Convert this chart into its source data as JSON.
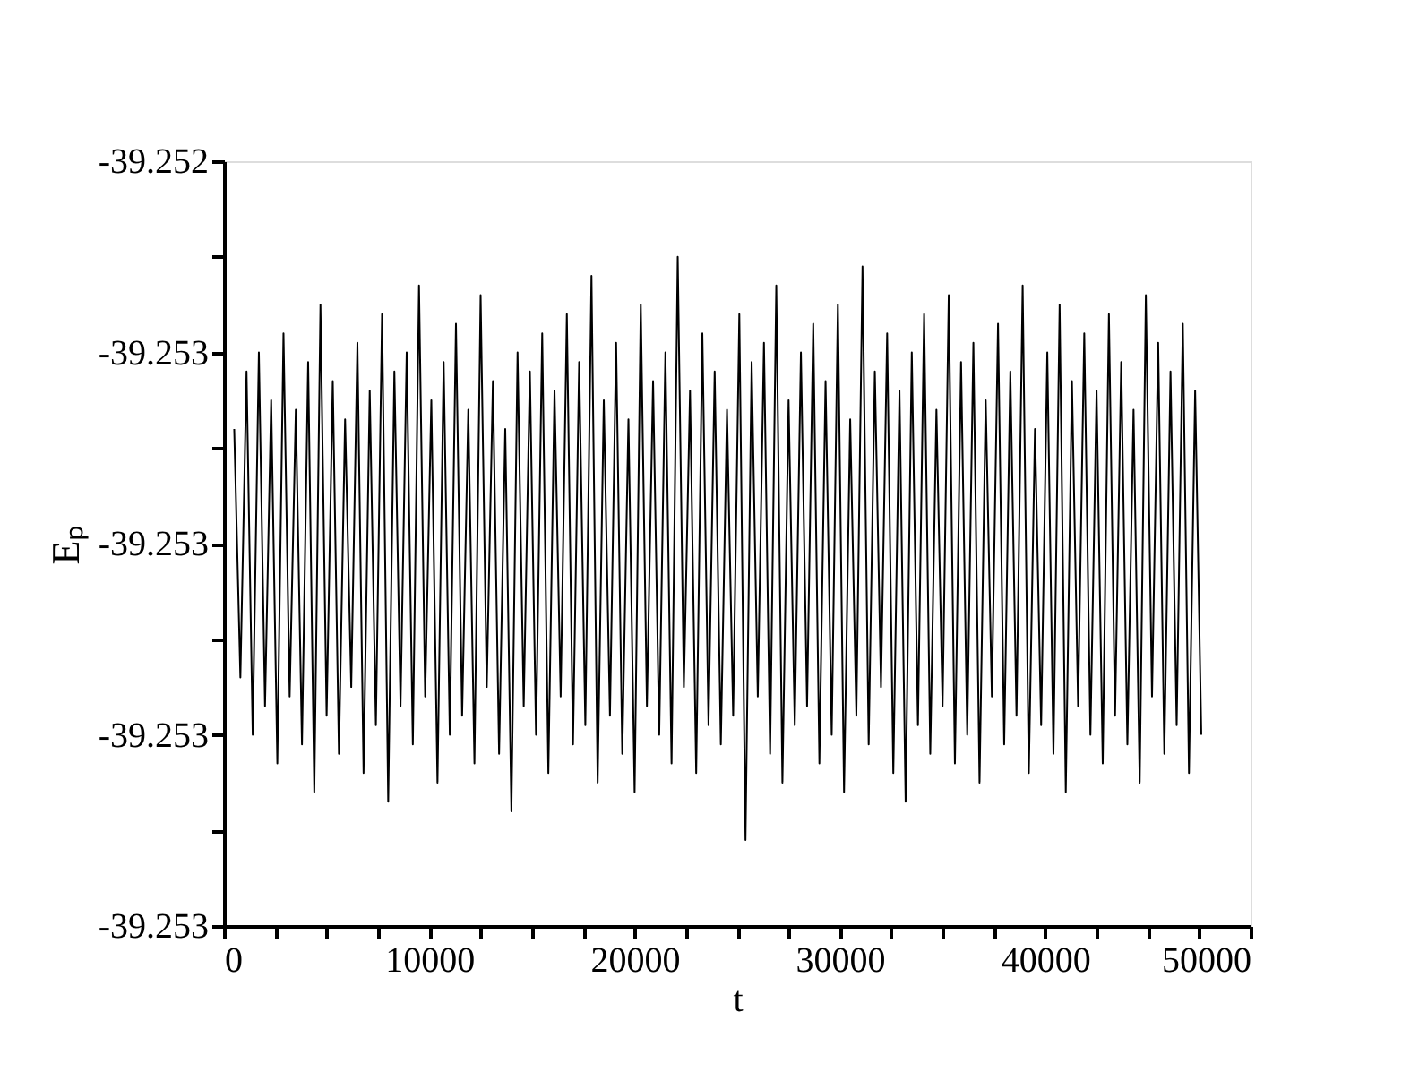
{
  "chart_data": {
    "type": "line",
    "xlabel": "t",
    "ylabel": "Eₚ",
    "x": [
      500,
      800,
      1100,
      1400,
      1700,
      2000,
      2300,
      2600,
      2900,
      3200,
      3500,
      3800,
      4100,
      4400,
      4700,
      5000,
      5300,
      5600,
      5900,
      6200,
      6500,
      6800,
      7100,
      7400,
      7700,
      8000,
      8300,
      8600,
      8900,
      9200,
      9500,
      9800,
      10100,
      10400,
      10700,
      11000,
      11300,
      11600,
      11900,
      12200,
      12500,
      12800,
      13100,
      13400,
      13700,
      14000,
      14300,
      14600,
      14900,
      15200,
      15500,
      15800,
      16100,
      16400,
      16700,
      17000,
      17300,
      17600,
      17900,
      18200,
      18500,
      18800,
      19100,
      19400,
      19700,
      20000,
      20300,
      20600,
      20900,
      21200,
      21500,
      21800,
      22100,
      22400,
      22700,
      23000,
      23300,
      23600,
      23900,
      24200,
      24500,
      24800,
      25100,
      25400,
      25700,
      26000,
      26300,
      26600,
      26900,
      27200,
      27500,
      27800,
      28100,
      28400,
      28700,
      29000,
      29300,
      29600,
      29900,
      30200,
      30500,
      30800,
      31100,
      31400,
      31700,
      32000,
      32300,
      32600,
      32900,
      33200,
      33500,
      33800,
      34100,
      34400,
      34700,
      35000,
      35300,
      35600,
      35900,
      36200,
      36500,
      36800,
      37100,
      37400,
      37700,
      38000,
      38300,
      38600,
      38900,
      39200,
      39500,
      39800,
      40100,
      40400,
      40700,
      41000,
      41300,
      41600,
      41900,
      42200,
      42500,
      42800,
      43100,
      43400,
      43700,
      44000,
      44300,
      44600,
      44900,
      45200,
      45500,
      45800,
      46100,
      46400,
      46700,
      47000,
      47300,
      47600
    ],
    "series": [
      {
        "color": "#000000",
        "values": [
          -39.25268,
          -39.25294,
          -39.25262,
          -39.253,
          -39.2526,
          -39.25297,
          -39.25265,
          -39.25303,
          -39.25258,
          -39.25296,
          -39.25266,
          -39.25301,
          -39.25261,
          -39.25306,
          -39.25255,
          -39.25298,
          -39.25263,
          -39.25302,
          -39.25267,
          -39.25295,
          -39.25259,
          -39.25304,
          -39.25264,
          -39.25299,
          -39.25256,
          -39.25307,
          -39.25262,
          -39.25297,
          -39.2526,
          -39.25301,
          -39.25253,
          -39.25296,
          -39.25265,
          -39.25305,
          -39.25261,
          -39.253,
          -39.25257,
          -39.25298,
          -39.25266,
          -39.25303,
          -39.25254,
          -39.25295,
          -39.25263,
          -39.25302,
          -39.25268,
          -39.25308,
          -39.2526,
          -39.25297,
          -39.25262,
          -39.253,
          -39.25258,
          -39.25304,
          -39.25264,
          -39.25296,
          -39.25256,
          -39.25301,
          -39.25261,
          -39.25299,
          -39.25252,
          -39.25305,
          -39.25265,
          -39.25298,
          -39.25259,
          -39.25302,
          -39.25267,
          -39.25306,
          -39.25255,
          -39.25297,
          -39.25263,
          -39.253,
          -39.2526,
          -39.25303,
          -39.2525,
          -39.25295,
          -39.25264,
          -39.25304,
          -39.25258,
          -39.25299,
          -39.25262,
          -39.25301,
          -39.25266,
          -39.25298,
          -39.25256,
          -39.25311,
          -39.25261,
          -39.25296,
          -39.25259,
          -39.25302,
          -39.25253,
          -39.25305,
          -39.25265,
          -39.25299,
          -39.2526,
          -39.25297,
          -39.25257,
          -39.25303,
          -39.25263,
          -39.253,
          -39.25255,
          -39.25306,
          -39.25267,
          -39.25298,
          -39.25251,
          -39.25301,
          -39.25262,
          -39.25295,
          -39.25258,
          -39.25304,
          -39.25264,
          -39.25307,
          -39.2526,
          -39.25299,
          -39.25256,
          -39.25302,
          -39.25266,
          -39.25297,
          -39.25254,
          -39.25303,
          -39.25261,
          -39.253,
          -39.25259,
          -39.25305,
          -39.25265,
          -39.25296,
          -39.25257,
          -39.25301,
          -39.25262,
          -39.25298,
          -39.25253,
          -39.25304,
          -39.25268,
          -39.25299,
          -39.2526,
          -39.25302,
          -39.25255,
          -39.25306,
          -39.25263,
          -39.25297,
          -39.25258,
          -39.253,
          -39.25264,
          -39.25303,
          -39.25256,
          -39.25298,
          -39.25261,
          -39.25301,
          -39.25266,
          -39.25305,
          -39.25254,
          -39.25296,
          -39.25259,
          -39.25302,
          -39.25262,
          -39.25299,
          -39.25257,
          -39.25304,
          -39.25264,
          -39.253
        ]
      }
    ],
    "xlim": [
      0,
      50000
    ],
    "ylim": [
      -39.2532,
      -39.2524
    ],
    "xticks": [
      0,
      {
        "value": 2500,
        "label": null
      },
      {
        "value": 5000,
        "label": null
      },
      {
        "value": 7500,
        "label": null
      },
      10000,
      {
        "value": 12500,
        "label": null
      },
      {
        "value": 15000,
        "label": null
      },
      {
        "value": 17500,
        "label": null
      },
      20000,
      {
        "value": 22500,
        "label": null
      },
      {
        "value": 25000,
        "label": null
      },
      {
        "value": 27500,
        "label": null
      },
      30000,
      {
        "value": 32500,
        "label": null
      },
      {
        "value": 35000,
        "label": null
      },
      {
        "value": 37500,
        "label": null
      },
      40000,
      {
        "value": 42500,
        "label": null
      },
      {
        "value": 45000,
        "label": null
      },
      {
        "value": 47500,
        "label": null
      },
      50000
    ],
    "yticks": [
      {
        "value": -39.2532,
        "label": "-39.253"
      },
      {
        "value": -39.2531,
        "label": null
      },
      {
        "value": -39.253,
        "label": "-39.253"
      },
      {
        "value": -39.2529,
        "label": null
      },
      {
        "value": -39.2528,
        "label": "-39.253"
      },
      {
        "value": -39.2527,
        "label": null
      },
      {
        "value": -39.2526,
        "label": "-39.253"
      },
      {
        "value": -39.2525,
        "label": null
      },
      {
        "value": -39.2524,
        "label": "-39.252"
      }
    ]
  }
}
